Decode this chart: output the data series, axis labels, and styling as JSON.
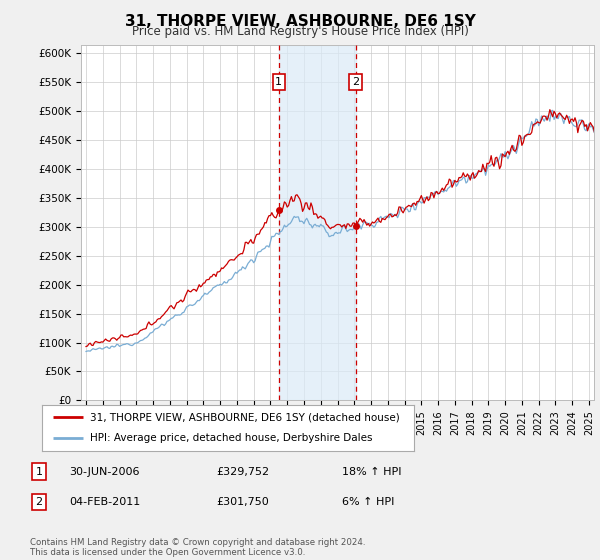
{
  "title": "31, THORPE VIEW, ASHBOURNE, DE6 1SY",
  "subtitle": "Price paid vs. HM Land Registry's House Price Index (HPI)",
  "ylabel_ticks": [
    "£0",
    "£50K",
    "£100K",
    "£150K",
    "£200K",
    "£250K",
    "£300K",
    "£350K",
    "£400K",
    "£450K",
    "£500K",
    "£550K",
    "£600K"
  ],
  "ytick_values": [
    0,
    50000,
    100000,
    150000,
    200000,
    250000,
    300000,
    350000,
    400000,
    450000,
    500000,
    550000,
    600000
  ],
  "ylim": [
    0,
    615000
  ],
  "xlim_start": 1994.7,
  "xlim_end": 2025.3,
  "legend_line1": "31, THORPE VIEW, ASHBOURNE, DE6 1SY (detached house)",
  "legend_line2": "HPI: Average price, detached house, Derbyshire Dales",
  "line1_color": "#cc0000",
  "line2_color": "#7aadd4",
  "sale1_x": 2006.5,
  "sale1_y": 329752,
  "sale2_x": 2011.09,
  "sale2_y": 301750,
  "shade_color": "#daeaf7",
  "dashed_line1_x": 2006.5,
  "dashed_line2_x": 2011.09,
  "table_data": [
    {
      "num": "1",
      "date": "30-JUN-2006",
      "price": "£329,752",
      "hpi": "18% ↑ HPI"
    },
    {
      "num": "2",
      "date": "04-FEB-2011",
      "price": "£301,750",
      "hpi": "6% ↑ HPI"
    }
  ],
  "footer": "Contains HM Land Registry data © Crown copyright and database right 2024.\nThis data is licensed under the Open Government Licence v3.0.",
  "background_color": "#f0f0f0",
  "plot_bg_color": "#ffffff",
  "grid_color": "#cccccc"
}
